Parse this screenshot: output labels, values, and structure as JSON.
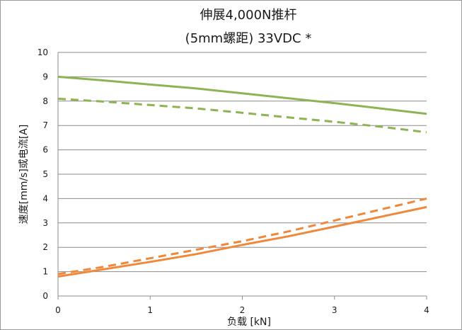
{
  "chart_data": {
    "type": "line",
    "title": [
      "伸展4,000N推杆",
      "(5mm螺距) 33VDC *"
    ],
    "xlabel": "负载 [kN]",
    "ylabel": "速度[mm/s]或电流[A]",
    "xlim": [
      0,
      4
    ],
    "ylim": [
      0,
      10
    ],
    "xticks": [
      "0",
      "1",
      "2",
      "3",
      "4"
    ],
    "yticks": [
      "0",
      "1",
      "2",
      "3",
      "4",
      "5",
      "6",
      "7",
      "8",
      "9",
      "10"
    ],
    "grid": "horizontal",
    "series": [
      {
        "color": "#8db454",
        "dash": "solid",
        "x": [
          0,
          0.5,
          1,
          1.5,
          2,
          2.5,
          3,
          3.5,
          4
        ],
        "y": [
          9.0,
          8.85,
          8.68,
          8.52,
          8.32,
          8.12,
          7.92,
          7.7,
          7.48
        ]
      },
      {
        "color": "#8db454",
        "dash": "dashed",
        "x": [
          0,
          0.5,
          1,
          1.5,
          2,
          2.5,
          3,
          3.5,
          4
        ],
        "y": [
          8.1,
          7.98,
          7.84,
          7.7,
          7.52,
          7.33,
          7.15,
          6.95,
          6.72
        ]
      },
      {
        "color": "#f0883c",
        "dash": "solid",
        "x": [
          0,
          0.5,
          1,
          1.5,
          2,
          2.5,
          3,
          3.5,
          4
        ],
        "y": [
          0.8,
          1.1,
          1.4,
          1.72,
          2.1,
          2.45,
          2.85,
          3.25,
          3.65
        ]
      },
      {
        "color": "#f0883c",
        "dash": "dashed",
        "x": [
          0,
          0.5,
          1,
          1.5,
          2,
          2.5,
          3,
          3.5,
          4
        ],
        "y": [
          0.9,
          1.2,
          1.55,
          1.9,
          2.25,
          2.65,
          3.1,
          3.55,
          4.0
        ]
      }
    ]
  }
}
